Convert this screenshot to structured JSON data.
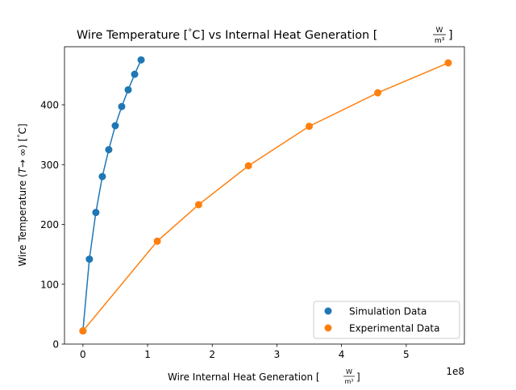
{
  "chart_data": {
    "type": "scatter",
    "title": "Wire Temperature [°C] vs Internal Heat Generation [W/m³]",
    "title_parts": {
      "main": "Wire Temperature [",
      "deg": "°",
      "unit_c": "C] vs Internal Heat Generation [",
      "frac_num": "W",
      "frac_den": "m³",
      "close": "]"
    },
    "xlabel": "Wire Internal Heat Generation [W/m³]",
    "xlabel_parts": {
      "main": "Wire Internal Heat Generation [",
      "frac_num": "W",
      "frac_den": "m³",
      "close": "]"
    },
    "ylabel": "Wire Temperature (T→∞) [°C]",
    "ylabel_parts": {
      "main": "Wire Temperature (",
      "italic": "T",
      "arrow": "→ ∞) [",
      "deg": "°",
      "close": "C]"
    },
    "x_offset_text": "1e8",
    "x_scale": 100000000,
    "xlim": [
      -28500000,
      590000000
    ],
    "ylim": [
      0,
      497
    ],
    "xticks": [
      0,
      100000000,
      200000000,
      300000000,
      400000000,
      500000000
    ],
    "xtick_labels": [
      "0",
      "1",
      "2",
      "3",
      "4",
      "5"
    ],
    "yticks": [
      0,
      100,
      200,
      300,
      400
    ],
    "ytick_labels": [
      "0",
      "100",
      "200",
      "300",
      "400"
    ],
    "grid": false,
    "legend_position": "lower-right",
    "series": [
      {
        "name": "Simulation Data",
        "color": "#1f77b4",
        "x": [
          0,
          10000000,
          20000000,
          30000000,
          40000000,
          50000000,
          60000000,
          70000000,
          80000000,
          90000000
        ],
        "y": [
          22,
          142,
          220,
          280,
          325,
          365,
          397,
          425,
          451,
          475
        ]
      },
      {
        "name": "Experimental Data",
        "color": "#ff7f0e",
        "x": [
          0,
          115000000,
          179000000,
          256000000,
          350000000,
          456000000,
          565000000
        ],
        "y": [
          22,
          172,
          233,
          298,
          364,
          420,
          470
        ]
      }
    ]
  }
}
